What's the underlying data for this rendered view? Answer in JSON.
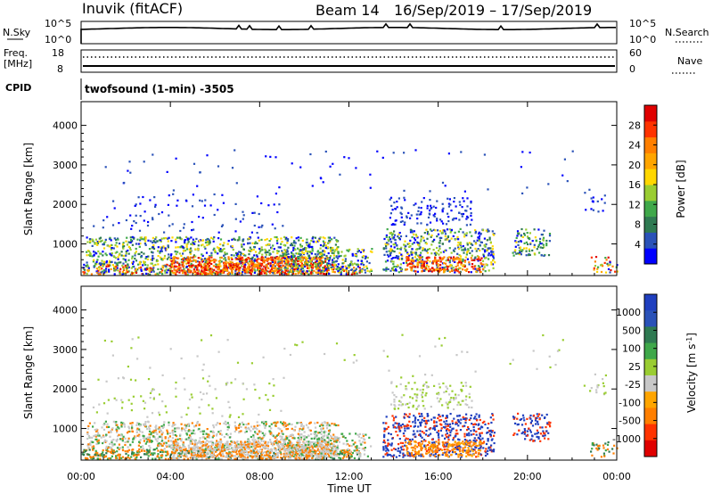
{
  "header": {
    "station": "Inuvik (fitACF)",
    "beam": "Beam 14",
    "date_range": "16/Sep/2019 – 17/Sep/2019"
  },
  "summary": {
    "nsky_label": "N.Sky",
    "nsky_ticks": [
      "10^5",
      "10^0"
    ],
    "nsearch_label": "N.Search",
    "nsearch_ticks": [
      "10^5",
      "10^0"
    ],
    "freq_label_line1": "Freq.",
    "freq_label_line2": "[MHz]",
    "freq_ticks": [
      "18",
      "8"
    ],
    "nave_label": "Nave",
    "nave_ticks": [
      "60",
      "0"
    ],
    "cpid_label": "CPID",
    "cpid_text": "twofsound (1-min) -3505"
  },
  "chart_data": [
    {
      "type": "heatmap",
      "name": "power-panel",
      "ylabel": "Slant Range [km]",
      "y_ticks": [
        "1000",
        "2000",
        "3000",
        "4000"
      ],
      "ylim": [
        200,
        4600
      ],
      "x_ticks": [
        "00:00",
        "04:00",
        "08:00",
        "12:00",
        "16:00",
        "20:00",
        "00:00"
      ],
      "xlim_hours": [
        0,
        24
      ],
      "colorbar": {
        "label": "Power [dB]",
        "ticks": [
          "4",
          "8",
          "12",
          "16",
          "20",
          "24",
          "28"
        ],
        "colors": [
          "#0000ff",
          "#2a52b8",
          "#2f7a52",
          "#3fa84a",
          "#9acd32",
          "#ffd700",
          "#ffa500",
          "#ff7f00",
          "#ff3300",
          "#e00000"
        ]
      }
    },
    {
      "type": "heatmap",
      "name": "velocity-panel",
      "ylabel": "Slant Range [km]",
      "y_ticks": [
        "1000",
        "2000",
        "3000",
        "4000"
      ],
      "ylim": [
        200,
        4600
      ],
      "x_ticks": [
        "00:00",
        "04:00",
        "08:00",
        "12:00",
        "16:00",
        "20:00",
        "00:00"
      ],
      "xlim_hours": [
        0,
        24
      ],
      "xlabel": "Time UT",
      "colorbar": {
        "label": "Velocity [m s^-1]",
        "ticks": [
          "1000",
          "500",
          "100",
          "25",
          "-25",
          "-100",
          "-500",
          "-1000"
        ],
        "colors": [
          "#1f3fbf",
          "#2a52b8",
          "#2f7a52",
          "#3fa84a",
          "#9acd32",
          "#c8c8c8",
          "#ffa500",
          "#ff7f00",
          "#ff3300",
          "#e00000"
        ]
      }
    }
  ]
}
